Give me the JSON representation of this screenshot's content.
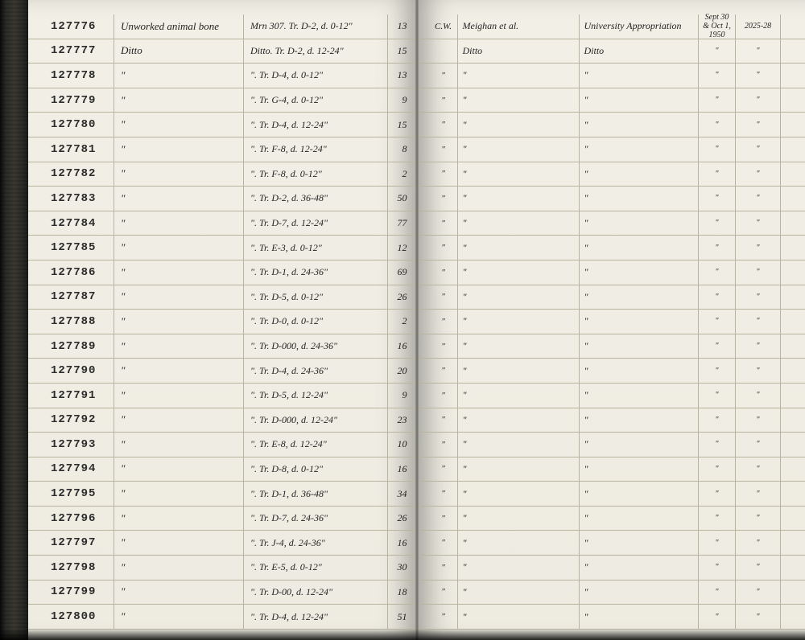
{
  "rows": [
    {
      "id": "127776",
      "desc": "Unworked animal bone",
      "loc": "Mrn 307. Tr. D-2, d. 0-12\"",
      "qty": "13",
      "r1": "C.W.",
      "r2": "Meighan et al.",
      "r3": "University Appropriation",
      "r4": "Sept 30 & Oct 1, 1950",
      "r5": "2025-28"
    },
    {
      "id": "127777",
      "desc": "Ditto",
      "loc": "Ditto. Tr. D-2, d. 12-24\"",
      "qty": "15",
      "r1": "",
      "r2": "Ditto",
      "r3": "Ditto",
      "r4": "\"",
      "r5": "\""
    },
    {
      "id": "127778",
      "desc": "\"",
      "loc": "\". Tr. D-4, d. 0-12\"",
      "qty": "13",
      "r1": "\"",
      "r2": "\"",
      "r3": "\"",
      "r4": "\"",
      "r5": "\""
    },
    {
      "id": "127779",
      "desc": "\"",
      "loc": "\". Tr. G-4, d. 0-12\"",
      "qty": "9",
      "r1": "\"",
      "r2": "\"",
      "r3": "\"",
      "r4": "\"",
      "r5": "\""
    },
    {
      "id": "127780",
      "desc": "\"",
      "loc": "\". Tr. D-4, d. 12-24\"",
      "qty": "15",
      "r1": "\"",
      "r2": "\"",
      "r3": "\"",
      "r4": "\"",
      "r5": "\""
    },
    {
      "id": "127781",
      "desc": "\"",
      "loc": "\". Tr. F-8, d. 12-24\"",
      "qty": "8",
      "r1": "\"",
      "r2": "\"",
      "r3": "\"",
      "r4": "\"",
      "r5": "\""
    },
    {
      "id": "127782",
      "desc": "\"",
      "loc": "\". Tr. F-8, d. 0-12\"",
      "qty": "2",
      "r1": "\"",
      "r2": "\"",
      "r3": "\"",
      "r4": "\"",
      "r5": "\""
    },
    {
      "id": "127783",
      "desc": "\"",
      "loc": "\". Tr. D-2, d. 36-48\"",
      "qty": "50",
      "r1": "\"",
      "r2": "\"",
      "r3": "\"",
      "r4": "\"",
      "r5": "\""
    },
    {
      "id": "127784",
      "desc": "\"",
      "loc": "\". Tr. D-7, d. 12-24\"",
      "qty": "77",
      "r1": "\"",
      "r2": "\"",
      "r3": "\"",
      "r4": "\"",
      "r5": "\""
    },
    {
      "id": "127785",
      "desc": "\"",
      "loc": "\". Tr. E-3, d. 0-12\"",
      "qty": "12",
      "r1": "\"",
      "r2": "\"",
      "r3": "\"",
      "r4": "\"",
      "r5": "\""
    },
    {
      "id": "127786",
      "desc": "\"",
      "loc": "\". Tr. D-1, d. 24-36\"",
      "qty": "69",
      "r1": "\"",
      "r2": "\"",
      "r3": "\"",
      "r4": "\"",
      "r5": "\""
    },
    {
      "id": "127787",
      "desc": "\"",
      "loc": "\". Tr. D-5, d. 0-12\"",
      "qty": "26",
      "r1": "\"",
      "r2": "\"",
      "r3": "\"",
      "r4": "\"",
      "r5": "\""
    },
    {
      "id": "127788",
      "desc": "\"",
      "loc": "\". Tr. D-0, d. 0-12\"",
      "qty": "2",
      "r1": "\"",
      "r2": "\"",
      "r3": "\"",
      "r4": "\"",
      "r5": "\""
    },
    {
      "id": "127789",
      "desc": "\"",
      "loc": "\". Tr. D-000, d. 24-36\"",
      "qty": "16",
      "r1": "\"",
      "r2": "\"",
      "r3": "\"",
      "r4": "\"",
      "r5": "\""
    },
    {
      "id": "127790",
      "desc": "\"",
      "loc": "\". Tr. D-4, d. 24-36\"",
      "qty": "20",
      "r1": "\"",
      "r2": "\"",
      "r3": "\"",
      "r4": "\"",
      "r5": "\""
    },
    {
      "id": "127791",
      "desc": "\"",
      "loc": "\". Tr. D-5, d. 12-24\"",
      "qty": "9",
      "r1": "\"",
      "r2": "\"",
      "r3": "\"",
      "r4": "\"",
      "r5": "\""
    },
    {
      "id": "127792",
      "desc": "\"",
      "loc": "\". Tr. D-000, d. 12-24\"",
      "qty": "23",
      "r1": "\"",
      "r2": "\"",
      "r3": "\"",
      "r4": "\"",
      "r5": "\""
    },
    {
      "id": "127793",
      "desc": "\"",
      "loc": "\". Tr. E-8, d. 12-24\"",
      "qty": "10",
      "r1": "\"",
      "r2": "\"",
      "r3": "\"",
      "r4": "\"",
      "r5": "\""
    },
    {
      "id": "127794",
      "desc": "\"",
      "loc": "\". Tr. D-8, d. 0-12\"",
      "qty": "16",
      "r1": "\"",
      "r2": "\"",
      "r3": "\"",
      "r4": "\"",
      "r5": "\""
    },
    {
      "id": "127795",
      "desc": "\"",
      "loc": "\". Tr. D-1, d. 36-48\"",
      "qty": "34",
      "r1": "\"",
      "r2": "\"",
      "r3": "\"",
      "r4": "\"",
      "r5": "\""
    },
    {
      "id": "127796",
      "desc": "\"",
      "loc": "\". Tr. D-7, d. 24-36\"",
      "qty": "26",
      "r1": "\"",
      "r2": "\"",
      "r3": "\"",
      "r4": "\"",
      "r5": "\""
    },
    {
      "id": "127797",
      "desc": "\"",
      "loc": "\". Tr. J-4, d. 24-36\"",
      "qty": "16",
      "r1": "\"",
      "r2": "\"",
      "r3": "\"",
      "r4": "\"",
      "r5": "\""
    },
    {
      "id": "127798",
      "desc": "\"",
      "loc": "\". Tr. E-5, d. 0-12\"",
      "qty": "30",
      "r1": "\"",
      "r2": "\"",
      "r3": "\"",
      "r4": "\"",
      "r5": "\""
    },
    {
      "id": "127799",
      "desc": "\"",
      "loc": "\". Tr. D-00, d. 12-24\"",
      "qty": "18",
      "r1": "\"",
      "r2": "\"",
      "r3": "\"",
      "r4": "\"",
      "r5": "\""
    },
    {
      "id": "127800",
      "desc": "\"",
      "loc": "\". Tr. D-4, d. 12-24\"",
      "qty": "51",
      "r1": "\"",
      "r2": "\"",
      "r3": "\"",
      "r4": "\"",
      "r5": "\""
    }
  ]
}
